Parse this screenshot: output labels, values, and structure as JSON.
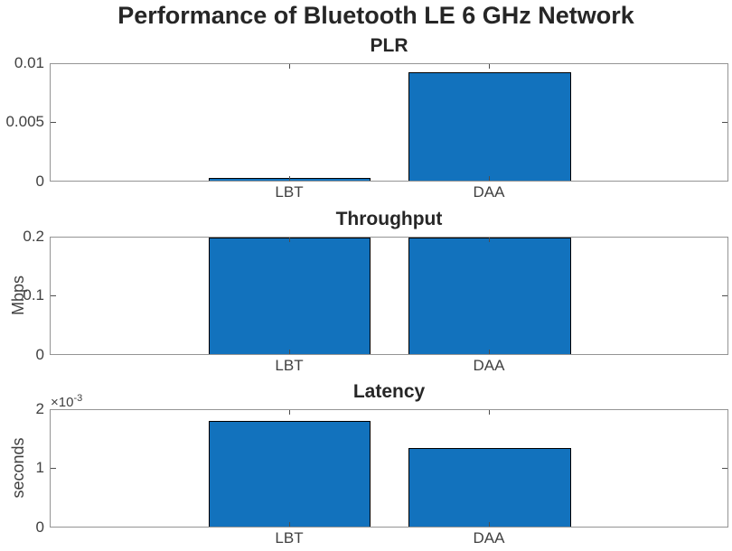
{
  "figure_title": "Performance of Bluetooth LE 6 GHz Network",
  "colors": {
    "bar_fill": "#1272BD",
    "bar_edge": "#000000",
    "axis_line": "#949494",
    "tick_label": "#404040",
    "title_text": "#262626"
  },
  "chart_data": [
    {
      "type": "bar",
      "title": "PLR",
      "categories": [
        "LBT",
        "DAA"
      ],
      "values": [
        0.0002,
        0.0093
      ],
      "xlabel": "",
      "ylabel": "",
      "ylim": [
        0,
        0.01
      ],
      "yticks": [
        "0",
        "0.005",
        "0.01"
      ],
      "grid": false,
      "legend": "none"
    },
    {
      "type": "bar",
      "title": "Throughput",
      "categories": [
        "LBT",
        "DAA"
      ],
      "values": [
        0.2,
        0.2
      ],
      "xlabel": "",
      "ylabel": "Mbps",
      "ylim": [
        0,
        0.2
      ],
      "yticks": [
        "0",
        "0.1",
        "0.2"
      ],
      "grid": false,
      "legend": "none"
    },
    {
      "type": "bar",
      "title": "Latency",
      "categories": [
        "LBT",
        "DAA"
      ],
      "values": [
        0.00182,
        0.00135
      ],
      "xlabel": "",
      "ylabel": "seconds",
      "ylim": [
        0,
        0.002
      ],
      "yticks": [
        "0",
        "1",
        "2"
      ],
      "y_exponent_base": "×10",
      "y_exponent_sup": "-3",
      "grid": false,
      "legend": "none"
    }
  ]
}
